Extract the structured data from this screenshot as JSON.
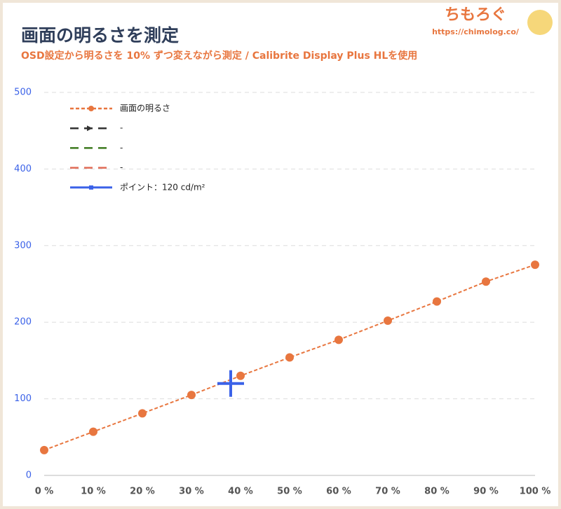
{
  "brand": {
    "name": "ちもろぐ",
    "url": "https://chimolog.co/"
  },
  "chart_data": {
    "type": "line",
    "title": "画面の明るさを測定",
    "subtitle": "OSD設定から明るさを 10% ずつ変えながら測定 / Calibrite Display Plus HLを使用",
    "xlim": [
      0,
      100
    ],
    "xticks": [
      {
        "value": 0,
        "label": "0 %"
      },
      {
        "value": 10,
        "label": "10 %"
      },
      {
        "value": 20,
        "label": "20 %"
      },
      {
        "value": 30,
        "label": "30 %"
      },
      {
        "value": 40,
        "label": "40 %"
      },
      {
        "value": 50,
        "label": "50 %"
      },
      {
        "value": 60,
        "label": "60 %"
      },
      {
        "value": 70,
        "label": "70 %"
      },
      {
        "value": 80,
        "label": "80 %"
      },
      {
        "value": 90,
        "label": "90 %"
      },
      {
        "value": 100,
        "label": "100 %"
      }
    ],
    "ylim": [
      0,
      500
    ],
    "yticks": [
      0,
      100,
      200,
      300,
      400,
      500
    ],
    "grid": true,
    "legend": "upper-left",
    "series": [
      {
        "name": "画面の明るさ",
        "color": "#e8763f",
        "marker": "circle",
        "x": [
          0,
          10,
          20,
          30,
          40,
          50,
          60,
          70,
          80,
          90,
          100
        ],
        "values": [
          33,
          57,
          81,
          105,
          130,
          154,
          177,
          202,
          227,
          253,
          275
        ]
      },
      {
        "name": "-",
        "color": "#333333",
        "marker": "arrow",
        "x": [],
        "values": []
      },
      {
        "name": "-",
        "color": "#3d7a1f",
        "marker": "none",
        "x": [],
        "values": []
      },
      {
        "name": "-",
        "color": "#e06a55",
        "marker": "none",
        "x": [],
        "values": []
      },
      {
        "name": "ポイント：120 cd/m²",
        "color": "#3b62e8",
        "marker": "plus",
        "x": [
          38
        ],
        "values": [
          120
        ]
      }
    ]
  }
}
